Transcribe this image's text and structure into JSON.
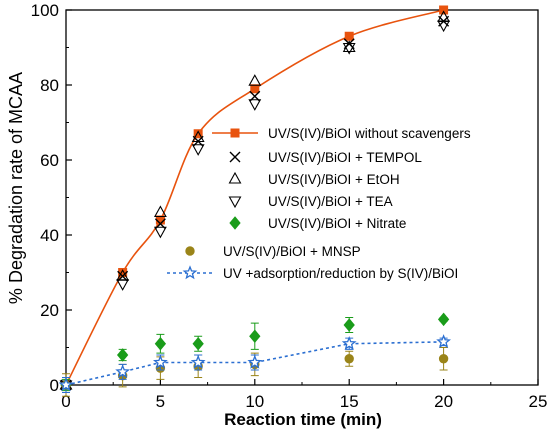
{
  "chart_data": {
    "type": "scatter",
    "xlabel": "Reaction time (min)",
    "ylabel": "% Degradation rate of MCAA",
    "xlim": [
      0,
      25
    ],
    "ylim": [
      0,
      100
    ],
    "xticks": [
      0,
      5,
      10,
      15,
      20,
      25
    ],
    "yticks": [
      0,
      20,
      40,
      60,
      80,
      100
    ],
    "grid": false,
    "legend_position": "right-middle",
    "series": [
      {
        "name": "UV/S(IV)/BiOI without scavengers",
        "marker": "square",
        "color": "#e8530e",
        "line": "solid",
        "x": [
          0,
          3,
          5,
          7,
          10,
          15,
          20
        ],
        "y": [
          0,
          30,
          44,
          67,
          79,
          93,
          100
        ]
      },
      {
        "name": "UV/S(IV)/BiOI + TEMPOL",
        "marker": "x",
        "color": "#000000",
        "x": [
          0,
          3,
          5,
          7,
          10,
          15,
          20
        ],
        "y": [
          0,
          29,
          43,
          65,
          77,
          91,
          97
        ]
      },
      {
        "name": "UV/S(IV)/BiOI + EtOH",
        "marker": "triangle-up",
        "color": "#000000",
        "x": [
          0,
          3,
          5,
          7,
          10,
          15,
          20
        ],
        "y": [
          0,
          29,
          46,
          66,
          81,
          90,
          98
        ]
      },
      {
        "name": "UV/S(IV)/BiOI + TEA",
        "marker": "triangle-down",
        "color": "#000000",
        "x": [
          0,
          3,
          5,
          7,
          10,
          15,
          20
        ],
        "y": [
          0,
          27,
          41,
          63,
          75,
          90,
          96
        ]
      },
      {
        "name": "UV/S(IV)/BiOI + Nitrate",
        "marker": "diamond",
        "color": "#1a9c1a",
        "x": [
          0,
          3,
          5,
          7,
          10,
          15,
          20
        ],
        "y": [
          0,
          8,
          11,
          11,
          13,
          16,
          17.5
        ],
        "err": [
          1.5,
          1.5,
          2.5,
          2,
          3.5,
          2,
          0.5
        ]
      },
      {
        "name": "UV/S(IV)/BiOI + MNSP",
        "marker": "circle",
        "color": "#9a8419",
        "x": [
          0,
          3,
          5,
          7,
          10,
          15,
          20
        ],
        "y": [
          0,
          2.5,
          4.5,
          5,
          5.5,
          7,
          7
        ],
        "err": [
          3,
          3,
          3,
          3,
          3,
          2,
          3
        ]
      },
      {
        "name": "UV +adsorption/reduction by S(IV)/BiOI",
        "marker": "star",
        "color": "#2b6fd1",
        "line": "dotted",
        "x": [
          0,
          3,
          5,
          7,
          10,
          15,
          20
        ],
        "y": [
          0,
          3.5,
          6,
          6,
          6,
          11,
          11.5
        ],
        "err": [
          2,
          2,
          2,
          2,
          2,
          1.5,
          1
        ]
      }
    ]
  }
}
